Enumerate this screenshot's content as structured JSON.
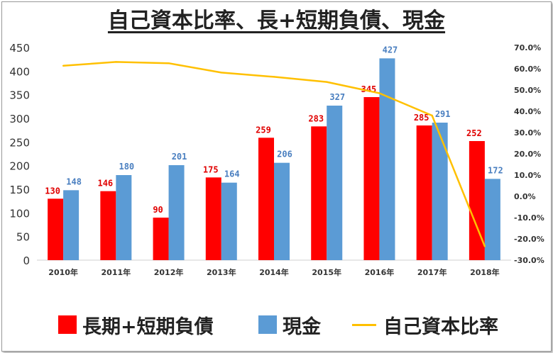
{
  "chart_data": {
    "type": "bar",
    "title": "自己資本比率、長+短期負債、現金",
    "categories": [
      "2010年",
      "2011年",
      "2012年",
      "2013年",
      "2014年",
      "2015年",
      "2016年",
      "2017年",
      "2018年"
    ],
    "series": [
      {
        "name": "長期+短期負債",
        "kind": "bar",
        "axis": "left",
        "color": "#ff0000",
        "label_color": "#e00000",
        "values": [
          130,
          146,
          90,
          175,
          259,
          283,
          345,
          285,
          252
        ]
      },
      {
        "name": "現金",
        "kind": "bar",
        "axis": "left",
        "color": "#5b9bd5",
        "label_color": "#4a7fc0",
        "values": [
          148,
          180,
          201,
          164,
          206,
          327,
          427,
          291,
          172
        ]
      },
      {
        "name": "自己資本比率",
        "kind": "line",
        "axis": "right",
        "color": "#ffc000",
        "values": [
          61.4,
          63.2,
          62.6,
          58.2,
          56.2,
          53.8,
          48.5,
          38.0,
          -23.5
        ]
      }
    ],
    "y_left": {
      "min": 0,
      "max": 450,
      "step": 50,
      "ticks": [
        "0",
        "50",
        "100",
        "150",
        "200",
        "250",
        "300",
        "350",
        "400",
        "450"
      ]
    },
    "y_right": {
      "min": -30,
      "max": 70,
      "step": 10,
      "ticks": [
        "-30.0%",
        "-20.0%",
        "-10.0%",
        "0.0%",
        "10.0%",
        "20.0%",
        "30.0%",
        "40.0%",
        "50.0%",
        "60.0%",
        "70.0%"
      ]
    },
    "grid": false,
    "legend_position": "bottom"
  }
}
